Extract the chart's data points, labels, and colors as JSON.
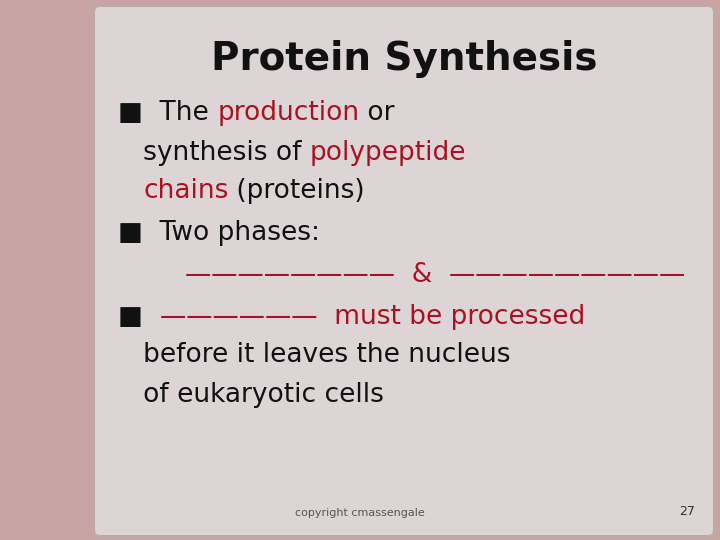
{
  "title": "Protein Synthesis",
  "title_color": "#111111",
  "title_fontsize": 28,
  "background_slide": "#c9a4a4",
  "background_box": "#ddd5d5",
  "text_black": "#111111",
  "text_red": "#aa1122",
  "footer_text": "copyright cmassengale",
  "footer_number": "27",
  "font_family": "Comic Sans MS",
  "body_fontsize": 19,
  "lines": [
    [
      {
        "text": "■  The ",
        "color": "#111111"
      },
      {
        "text": "production",
        "color": "#aa1122"
      },
      {
        "text": " or",
        "color": "#111111"
      }
    ],
    [
      {
        "text": "   synthesis of ",
        "color": "#111111"
      },
      {
        "text": "polypeptide",
        "color": "#aa1122"
      }
    ],
    [
      {
        "text": "   ",
        "color": "#111111"
      },
      {
        "text": "chains",
        "color": "#aa1122"
      },
      {
        "text": " (proteins)",
        "color": "#111111"
      }
    ],
    [
      {
        "text": "■  Two phases:",
        "color": "#111111"
      }
    ],
    [
      {
        "text": "        ————————  &  —————————",
        "color": "#aa1122"
      }
    ],
    [
      {
        "text": "■  ",
        "color": "#111111"
      },
      {
        "text": "——————  must be processed",
        "color": "#aa1122"
      }
    ],
    [
      {
        "text": "   before it leaves the nucleus",
        "color": "#111111"
      }
    ],
    [
      {
        "text": "   of eukaryotic cells",
        "color": "#111111"
      }
    ]
  ]
}
